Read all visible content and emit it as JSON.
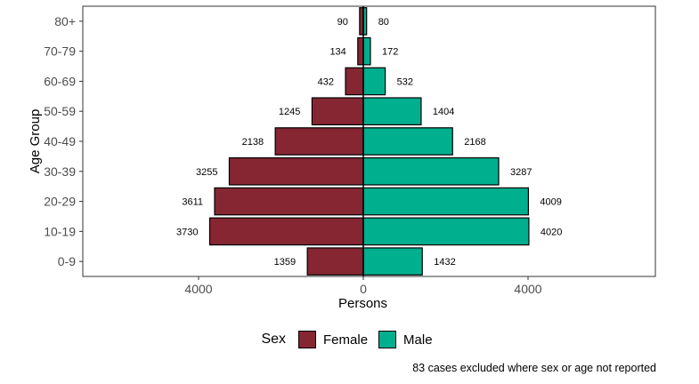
{
  "chart_data": {
    "type": "bar",
    "orientation": "horizontal-pyramid",
    "categories": [
      "0-9",
      "10-19",
      "20-29",
      "30-39",
      "40-49",
      "50-59",
      "60-69",
      "70-79",
      "80+"
    ],
    "series": [
      {
        "name": "Female",
        "color": "#862633",
        "values": [
          1359,
          3730,
          3611,
          3255,
          2138,
          1245,
          432,
          134,
          90
        ]
      },
      {
        "name": "Male",
        "color": "#00AF8E",
        "values": [
          1432,
          4020,
          4009,
          3287,
          2168,
          1404,
          532,
          172,
          80
        ]
      }
    ],
    "xlabel": "Persons",
    "ylabel": "Age Group",
    "xlim": [
      -7000,
      7000
    ],
    "xticks": [
      -4000,
      0,
      4000
    ],
    "xtick_labels": [
      "4000",
      "0",
      "4000"
    ],
    "grid": false,
    "legend": {
      "title": "Sex",
      "position": "bottom"
    },
    "caption": "83 cases excluded where sex or age not reported"
  }
}
